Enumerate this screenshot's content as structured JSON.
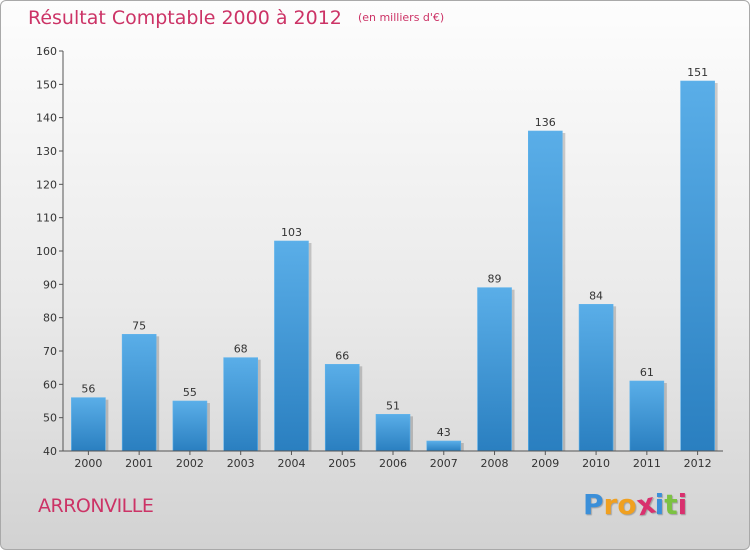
{
  "chart_data": {
    "type": "bar",
    "title": "Résultat Comptable 2000 à 2012",
    "unit_label": "(en milliers d'€)",
    "xlabel": "",
    "ylabel": "",
    "categories": [
      "2000",
      "2001",
      "2002",
      "2003",
      "2004",
      "2005",
      "2006",
      "2007",
      "2008",
      "2009",
      "2010",
      "2011",
      "2012"
    ],
    "values": [
      56,
      75,
      55,
      68,
      103,
      66,
      51,
      43,
      89,
      136,
      84,
      61,
      151
    ],
    "ylim": [
      40,
      160
    ],
    "yticks": [
      40,
      50,
      60,
      70,
      80,
      90,
      100,
      110,
      120,
      130,
      140,
      150,
      160
    ],
    "grid": false,
    "legend": "none"
  },
  "location": {
    "name": "ARRONVILLE"
  },
  "branding": {
    "logo_letters": [
      "P",
      "r",
      "o",
      "x",
      "i",
      "t",
      "i"
    ],
    "logo_colors": [
      "#3b8fd9",
      "#f0a020",
      "#f0a020",
      "#d9306e",
      "#3b8fd9",
      "#7cc242",
      "#d9306e"
    ]
  },
  "colors": {
    "title": "#cc3366",
    "bar_top": "#5aaee8",
    "bar_bottom": "#2a7fc0",
    "axis": "#555555",
    "text": "#333333"
  }
}
